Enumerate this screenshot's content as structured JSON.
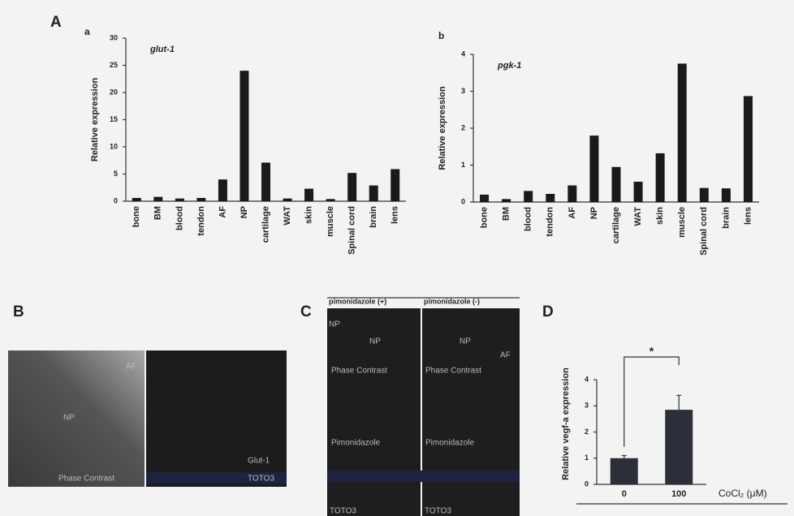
{
  "chart_data": [
    {
      "type": "bar",
      "subplot_label": "a",
      "title": "glut-1",
      "ylabel": "Relative expression",
      "categories": [
        "bone",
        "BM",
        "blood",
        "tendon",
        "AF",
        "NP",
        "cartilage",
        "WAT",
        "skin",
        "muscle",
        "Spinal cord",
        "brain",
        "lens"
      ],
      "values": [
        0.6,
        0.8,
        0.5,
        0.6,
        4,
        24,
        7.1,
        0.5,
        2.3,
        0.4,
        5.2,
        2.9,
        5.9
      ],
      "color": "#1a1a1a",
      "ylim": [
        0,
        30
      ],
      "yticks": [
        0,
        5,
        10,
        15,
        20,
        25,
        30
      ]
    },
    {
      "type": "bar",
      "subplot_label": "b",
      "title": "pgk-1",
      "ylabel": "Relative expression",
      "categories": [
        "bone",
        "BM",
        "blood",
        "tendon",
        "AF",
        "NP",
        "cartilage",
        "WAT",
        "skin",
        "muscle",
        "Spinal cord",
        "brain",
        "lens"
      ],
      "values": [
        0.2,
        0.08,
        0.3,
        0.22,
        0.45,
        1.8,
        0.95,
        0.55,
        1.32,
        3.75,
        0.38,
        0.37,
        2.87
      ],
      "color": "#1a1a1a",
      "ylim": [
        0,
        4
      ],
      "yticks": [
        0,
        1,
        2,
        3,
        4
      ]
    },
    {
      "type": "bar",
      "ylabel": "Relative vegf-a expression",
      "xlabel": "CoCl₂ (μM)",
      "categories": [
        "0",
        "100"
      ],
      "values": [
        1.0,
        2.85
      ],
      "errors": [
        0.1,
        0.55
      ],
      "color": "#2a2f3a",
      "ylim": [
        0,
        4
      ],
      "yticks": [
        0,
        1,
        2,
        3,
        4
      ],
      "annotation": "*"
    }
  ],
  "figure": {
    "panel_labels": [
      "A",
      "B",
      "C",
      "D"
    ],
    "panel_b": {
      "labels": [
        "AF",
        "NP",
        "Phase Contrast",
        "Glut-1",
        "TOTO3"
      ]
    },
    "panel_c": {
      "headers": [
        "pimonidazole (+)",
        "pimonidazole (-)"
      ],
      "labels": [
        "NP",
        "NP",
        "NP",
        "AF",
        "Phase Contrast",
        "Phase Contrast",
        "Pimonidazole",
        "Pimonidazole",
        "TOTO3",
        "TOTO3"
      ]
    }
  }
}
